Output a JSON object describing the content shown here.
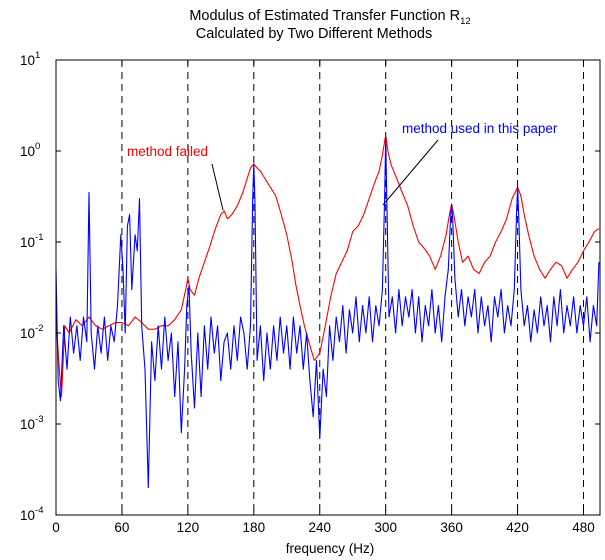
{
  "chart_data": {
    "type": "line",
    "title_line1": "Modulus of Estimated Transfer Function R",
    "title_subscript": "12",
    "title_line2": "Calculated by Two Different Methods",
    "xlabel": "frequency (Hz)",
    "ylabel": "",
    "xlim": [
      0,
      495
    ],
    "ylim": [
      0.0001,
      10
    ],
    "yscale": "log",
    "x_ticks": [
      "0",
      "60",
      "120",
      "180",
      "240",
      "300",
      "360",
      "420",
      "480"
    ],
    "y_ticks": [
      {
        "base": "10",
        "exp": "1"
      },
      {
        "base": "10",
        "exp": "0"
      },
      {
        "base": "10",
        "exp": "-1"
      },
      {
        "base": "10",
        "exp": "-2"
      },
      {
        "base": "10",
        "exp": "-3"
      },
      {
        "base": "10",
        "exp": "-4"
      }
    ],
    "vertical_dashed_lines_x": [
      60,
      120,
      180,
      240,
      300,
      360,
      420,
      480
    ],
    "annotations": [
      {
        "text": "method failed",
        "color": "#ff0000"
      },
      {
        "text": "method used in this paper",
        "color": "#0000ff"
      }
    ],
    "series": [
      {
        "color": "#ff0000",
        "points": [
          [
            0,
            0.015
          ],
          [
            3,
            0.004
          ],
          [
            5,
            0.002
          ],
          [
            8,
            0.012
          ],
          [
            12,
            0.01
          ],
          [
            18,
            0.014
          ],
          [
            24,
            0.012
          ],
          [
            30,
            0.015
          ],
          [
            36,
            0.012
          ],
          [
            42,
            0.011
          ],
          [
            48,
            0.012
          ],
          [
            54,
            0.013
          ],
          [
            60,
            0.013
          ],
          [
            66,
            0.012
          ],
          [
            72,
            0.015
          ],
          [
            78,
            0.013
          ],
          [
            84,
            0.011
          ],
          [
            90,
            0.011
          ],
          [
            96,
            0.012
          ],
          [
            102,
            0.012
          ],
          [
            108,
            0.014
          ],
          [
            114,
            0.018
          ],
          [
            118,
            0.03
          ],
          [
            120,
            0.04
          ],
          [
            122,
            0.03
          ],
          [
            126,
            0.026
          ],
          [
            130,
            0.04
          ],
          [
            135,
            0.06
          ],
          [
            140,
            0.09
          ],
          [
            145,
            0.14
          ],
          [
            150,
            0.2
          ],
          [
            153,
            0.22
          ],
          [
            156,
            0.18
          ],
          [
            160,
            0.2
          ],
          [
            165,
            0.25
          ],
          [
            170,
            0.35
          ],
          [
            174,
            0.5
          ],
          [
            177,
            0.65
          ],
          [
            180,
            0.72
          ],
          [
            183,
            0.65
          ],
          [
            186,
            0.6
          ],
          [
            190,
            0.5
          ],
          [
            195,
            0.4
          ],
          [
            200,
            0.32
          ],
          [
            205,
            0.2
          ],
          [
            210,
            0.12
          ],
          [
            215,
            0.06
          ],
          [
            218,
            0.035
          ],
          [
            222,
            0.02
          ],
          [
            226,
            0.012
          ],
          [
            230,
            0.008
          ],
          [
            235,
            0.005
          ],
          [
            240,
            0.006
          ],
          [
            245,
            0.012
          ],
          [
            250,
            0.025
          ],
          [
            255,
            0.045
          ],
          [
            260,
            0.06
          ],
          [
            265,
            0.08
          ],
          [
            270,
            0.13
          ],
          [
            275,
            0.15
          ],
          [
            280,
            0.2
          ],
          [
            285,
            0.3
          ],
          [
            290,
            0.45
          ],
          [
            294,
            0.6
          ],
          [
            297,
            0.9
          ],
          [
            300,
            1.5
          ],
          [
            302,
            1.0
          ],
          [
            305,
            0.7
          ],
          [
            310,
            0.5
          ],
          [
            315,
            0.35
          ],
          [
            320,
            0.25
          ],
          [
            325,
            0.15
          ],
          [
            330,
            0.1
          ],
          [
            335,
            0.085
          ],
          [
            340,
            0.07
          ],
          [
            345,
            0.05
          ],
          [
            350,
            0.07
          ],
          [
            355,
            0.12
          ],
          [
            358,
            0.2
          ],
          [
            360,
            0.26
          ],
          [
            362,
            0.2
          ],
          [
            366,
            0.1
          ],
          [
            370,
            0.06
          ],
          [
            375,
            0.07
          ],
          [
            380,
            0.05
          ],
          [
            385,
            0.045
          ],
          [
            390,
            0.06
          ],
          [
            395,
            0.07
          ],
          [
            400,
            0.1
          ],
          [
            405,
            0.13
          ],
          [
            410,
            0.18
          ],
          [
            415,
            0.3
          ],
          [
            420,
            0.4
          ],
          [
            423,
            0.32
          ],
          [
            426,
            0.2
          ],
          [
            430,
            0.12
          ],
          [
            435,
            0.07
          ],
          [
            440,
            0.05
          ],
          [
            445,
            0.04
          ],
          [
            450,
            0.05
          ],
          [
            455,
            0.06
          ],
          [
            460,
            0.055
          ],
          [
            465,
            0.04
          ],
          [
            470,
            0.05
          ],
          [
            475,
            0.06
          ],
          [
            480,
            0.08
          ],
          [
            485,
            0.1
          ],
          [
            490,
            0.13
          ],
          [
            494,
            0.14
          ]
        ]
      },
      {
        "color": "#0000ff",
        "points": [
          [
            0,
            0.05
          ],
          [
            2,
            0.003
          ],
          [
            4,
            0.0018
          ],
          [
            7,
            0.012
          ],
          [
            10,
            0.004
          ],
          [
            13,
            0.015
          ],
          [
            16,
            0.006
          ],
          [
            19,
            0.012
          ],
          [
            22,
            0.005
          ],
          [
            25,
            0.015
          ],
          [
            28,
            0.008
          ],
          [
            30,
            0.35
          ],
          [
            32,
            0.01
          ],
          [
            35,
            0.004
          ],
          [
            38,
            0.012
          ],
          [
            41,
            0.006
          ],
          [
            44,
            0.015
          ],
          [
            47,
            0.005
          ],
          [
            50,
            0.012
          ],
          [
            53,
            0.008
          ],
          [
            56,
            0.02
          ],
          [
            59,
            0.12
          ],
          [
            61,
            0.05
          ],
          [
            63,
            0.01
          ],
          [
            65,
            0.15
          ],
          [
            67,
            0.2
          ],
          [
            69,
            0.03
          ],
          [
            72,
            0.12
          ],
          [
            74,
            0.08
          ],
          [
            76,
            0.3
          ],
          [
            78,
            0.012
          ],
          [
            81,
            0.004
          ],
          [
            84,
            0.0002
          ],
          [
            87,
            0.008
          ],
          [
            90,
            0.003
          ],
          [
            93,
            0.012
          ],
          [
            96,
            0.004
          ],
          [
            99,
            0.015
          ],
          [
            102,
            0.005
          ],
          [
            105,
            0.01
          ],
          [
            108,
            0.002
          ],
          [
            111,
            0.008
          ],
          [
            114,
            0.0008
          ],
          [
            117,
            0.004
          ],
          [
            119,
            0.02
          ],
          [
            121,
            0.033
          ],
          [
            123,
            0.006
          ],
          [
            126,
            0.0015
          ],
          [
            129,
            0.01
          ],
          [
            132,
            0.002
          ],
          [
            135,
            0.012
          ],
          [
            138,
            0.004
          ],
          [
            141,
            0.015
          ],
          [
            144,
            0.006
          ],
          [
            147,
            0.012
          ],
          [
            150,
            0.003
          ],
          [
            153,
            0.008
          ],
          [
            156,
            0.01
          ],
          [
            159,
            0.004
          ],
          [
            162,
            0.012
          ],
          [
            165,
            0.005
          ],
          [
            168,
            0.015
          ],
          [
            171,
            0.01
          ],
          [
            174,
            0.004
          ],
          [
            177,
            0.012
          ],
          [
            179,
            0.3
          ],
          [
            180,
            0.72
          ],
          [
            181,
            0.3
          ],
          [
            183,
            0.005
          ],
          [
            186,
            0.012
          ],
          [
            189,
            0.003
          ],
          [
            192,
            0.01
          ],
          [
            195,
            0.004
          ],
          [
            198,
            0.012
          ],
          [
            201,
            0.005
          ],
          [
            204,
            0.015
          ],
          [
            207,
            0.006
          ],
          [
            210,
            0.012
          ],
          [
            213,
            0.004
          ],
          [
            216,
            0.015
          ],
          [
            219,
            0.006
          ],
          [
            222,
            0.012
          ],
          [
            225,
            0.004
          ],
          [
            228,
            0.01
          ],
          [
            231,
            0.003
          ],
          [
            234,
            0.0012
          ],
          [
            237,
            0.005
          ],
          [
            240,
            0.0007
          ],
          [
            243,
            0.004
          ],
          [
            246,
            0.002
          ],
          [
            249,
            0.012
          ],
          [
            252,
            0.005
          ],
          [
            255,
            0.015
          ],
          [
            258,
            0.008
          ],
          [
            261,
            0.02
          ],
          [
            264,
            0.006
          ],
          [
            267,
            0.018
          ],
          [
            270,
            0.01
          ],
          [
            273,
            0.025
          ],
          [
            276,
            0.008
          ],
          [
            279,
            0.02
          ],
          [
            282,
            0.01
          ],
          [
            285,
            0.025
          ],
          [
            288,
            0.008
          ],
          [
            291,
            0.02
          ],
          [
            294,
            0.012
          ],
          [
            297,
            0.03
          ],
          [
            299,
            0.3
          ],
          [
            300,
            1.4
          ],
          [
            301,
            0.3
          ],
          [
            303,
            0.015
          ],
          [
            306,
            0.025
          ],
          [
            309,
            0.01
          ],
          [
            312,
            0.03
          ],
          [
            315,
            0.012
          ],
          [
            318,
            0.025
          ],
          [
            321,
            0.015
          ],
          [
            324,
            0.03
          ],
          [
            327,
            0.01
          ],
          [
            330,
            0.025
          ],
          [
            333,
            0.008
          ],
          [
            336,
            0.02
          ],
          [
            339,
            0.012
          ],
          [
            342,
            0.03
          ],
          [
            345,
            0.01
          ],
          [
            348,
            0.02
          ],
          [
            351,
            0.008
          ],
          [
            354,
            0.025
          ],
          [
            357,
            0.05
          ],
          [
            359,
            0.18
          ],
          [
            360,
            0.26
          ],
          [
            361,
            0.18
          ],
          [
            363,
            0.04
          ],
          [
            366,
            0.015
          ],
          [
            369,
            0.03
          ],
          [
            372,
            0.012
          ],
          [
            375,
            0.025
          ],
          [
            378,
            0.015
          ],
          [
            381,
            0.03
          ],
          [
            384,
            0.01
          ],
          [
            387,
            0.025
          ],
          [
            390,
            0.012
          ],
          [
            393,
            0.02
          ],
          [
            396,
            0.008
          ],
          [
            399,
            0.025
          ],
          [
            402,
            0.015
          ],
          [
            405,
            0.03
          ],
          [
            408,
            0.01
          ],
          [
            411,
            0.02
          ],
          [
            414,
            0.012
          ],
          [
            417,
            0.03
          ],
          [
            419,
            0.2
          ],
          [
            420,
            0.4
          ],
          [
            421,
            0.2
          ],
          [
            423,
            0.03
          ],
          [
            426,
            0.012
          ],
          [
            429,
            0.02
          ],
          [
            432,
            0.008
          ],
          [
            435,
            0.018
          ],
          [
            438,
            0.01
          ],
          [
            441,
            0.025
          ],
          [
            444,
            0.012
          ],
          [
            447,
            0.02
          ],
          [
            450,
            0.008
          ],
          [
            453,
            0.025
          ],
          [
            456,
            0.012
          ],
          [
            459,
            0.03
          ],
          [
            462,
            0.01
          ],
          [
            465,
            0.02
          ],
          [
            468,
            0.012
          ],
          [
            471,
            0.025
          ],
          [
            474,
            0.01
          ],
          [
            477,
            0.02
          ],
          [
            480,
            0.012
          ],
          [
            483,
            0.025
          ],
          [
            486,
            0.008
          ],
          [
            489,
            0.02
          ],
          [
            492,
            0.012
          ],
          [
            494,
            0.06
          ]
        ]
      }
    ]
  }
}
